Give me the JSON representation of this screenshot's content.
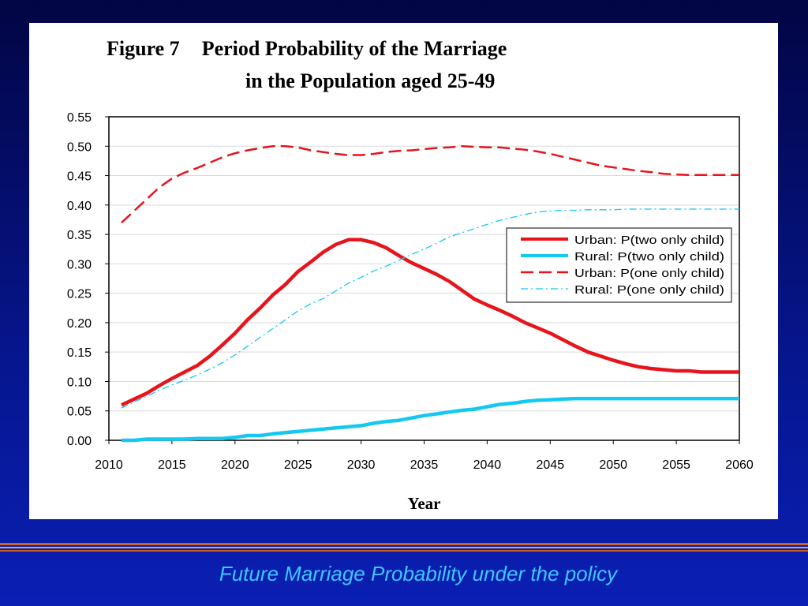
{
  "slide": {
    "footer": "Future Marriage Probability under the policy"
  },
  "chart_data": {
    "type": "line",
    "title_prefix": "Figure 7",
    "title_line1": "Period Probability of the Marriage",
    "title_line2": "in the Population aged 25-49",
    "xlabel": "Year",
    "ylabel": "",
    "xlim": [
      2010,
      2060
    ],
    "ylim": [
      0,
      0.55
    ],
    "x_ticks": [
      "2010",
      "2015",
      "2020",
      "2025",
      "2030",
      "2035",
      "2040",
      "2045",
      "2050",
      "2055",
      "2060"
    ],
    "y_ticks": [
      "0.00",
      "0.05",
      "0.10",
      "0.15",
      "0.20",
      "0.25",
      "0.30",
      "0.35",
      "0.40",
      "0.45",
      "0.50",
      "0.55"
    ],
    "grid": "horizontal",
    "legend_position": "right",
    "x": [
      2011,
      2012,
      2013,
      2014,
      2015,
      2016,
      2017,
      2018,
      2019,
      2020,
      2021,
      2022,
      2023,
      2024,
      2025,
      2026,
      2027,
      2028,
      2029,
      2030,
      2031,
      2032,
      2033,
      2034,
      2035,
      2036,
      2037,
      2038,
      2039,
      2040,
      2041,
      2042,
      2043,
      2044,
      2045,
      2046,
      2047,
      2048,
      2049,
      2050,
      2051,
      2052,
      2053,
      2054,
      2055,
      2056,
      2057,
      2058,
      2059,
      2060
    ],
    "series": [
      {
        "name": "Urban: P(two only child)",
        "color": "#e8141c",
        "style": "solid-thick",
        "values": [
          0.06,
          0.07,
          0.08,
          0.093,
          0.105,
          0.116,
          0.127,
          0.143,
          0.162,
          0.182,
          0.205,
          0.225,
          0.247,
          0.265,
          0.287,
          0.303,
          0.32,
          0.333,
          0.341,
          0.341,
          0.336,
          0.327,
          0.314,
          0.302,
          0.292,
          0.282,
          0.27,
          0.255,
          0.24,
          0.23,
          0.221,
          0.211,
          0.2,
          0.191,
          0.182,
          0.171,
          0.16,
          0.15,
          0.143,
          0.136,
          0.13,
          0.125,
          0.122,
          0.12,
          0.118,
          0.118,
          0.116,
          0.116,
          0.116,
          0.116
        ]
      },
      {
        "name": "Rural: P(two only child)",
        "color": "#15c8f2",
        "style": "solid-thick",
        "values": [
          0.0,
          0.0,
          0.002,
          0.002,
          0.002,
          0.002,
          0.003,
          0.003,
          0.003,
          0.005,
          0.008,
          0.008,
          0.011,
          0.013,
          0.015,
          0.017,
          0.019,
          0.021,
          0.023,
          0.025,
          0.029,
          0.032,
          0.034,
          0.038,
          0.042,
          0.045,
          0.048,
          0.051,
          0.053,
          0.057,
          0.061,
          0.063,
          0.066,
          0.068,
          0.069,
          0.07,
          0.071,
          0.071,
          0.071,
          0.071,
          0.071,
          0.071,
          0.071,
          0.071,
          0.071,
          0.071,
          0.071,
          0.071,
          0.071,
          0.071
        ]
      },
      {
        "name": "Urban: P(one only child)",
        "color": "#e8141c",
        "style": "dashed",
        "values": [
          0.37,
          0.39,
          0.41,
          0.43,
          0.445,
          0.455,
          0.463,
          0.472,
          0.481,
          0.488,
          0.493,
          0.497,
          0.5,
          0.5,
          0.498,
          0.493,
          0.49,
          0.487,
          0.485,
          0.485,
          0.487,
          0.49,
          0.492,
          0.493,
          0.495,
          0.497,
          0.498,
          0.5,
          0.499,
          0.498,
          0.498,
          0.496,
          0.494,
          0.491,
          0.487,
          0.482,
          0.477,
          0.472,
          0.467,
          0.464,
          0.461,
          0.458,
          0.456,
          0.453,
          0.452,
          0.451,
          0.451,
          0.451,
          0.451,
          0.451
        ]
      },
      {
        "name": "Rural: P(one only child)",
        "color": "#15c8f2",
        "style": "dashdot",
        "values": [
          0.055,
          0.065,
          0.075,
          0.085,
          0.094,
          0.102,
          0.111,
          0.121,
          0.132,
          0.145,
          0.16,
          0.175,
          0.19,
          0.205,
          0.22,
          0.232,
          0.241,
          0.254,
          0.267,
          0.277,
          0.288,
          0.296,
          0.306,
          0.316,
          0.325,
          0.335,
          0.346,
          0.353,
          0.36,
          0.367,
          0.374,
          0.379,
          0.384,
          0.388,
          0.39,
          0.391,
          0.391,
          0.392,
          0.392,
          0.392,
          0.393,
          0.393,
          0.393,
          0.393,
          0.393,
          0.393,
          0.393,
          0.393,
          0.393,
          0.393
        ]
      }
    ]
  }
}
